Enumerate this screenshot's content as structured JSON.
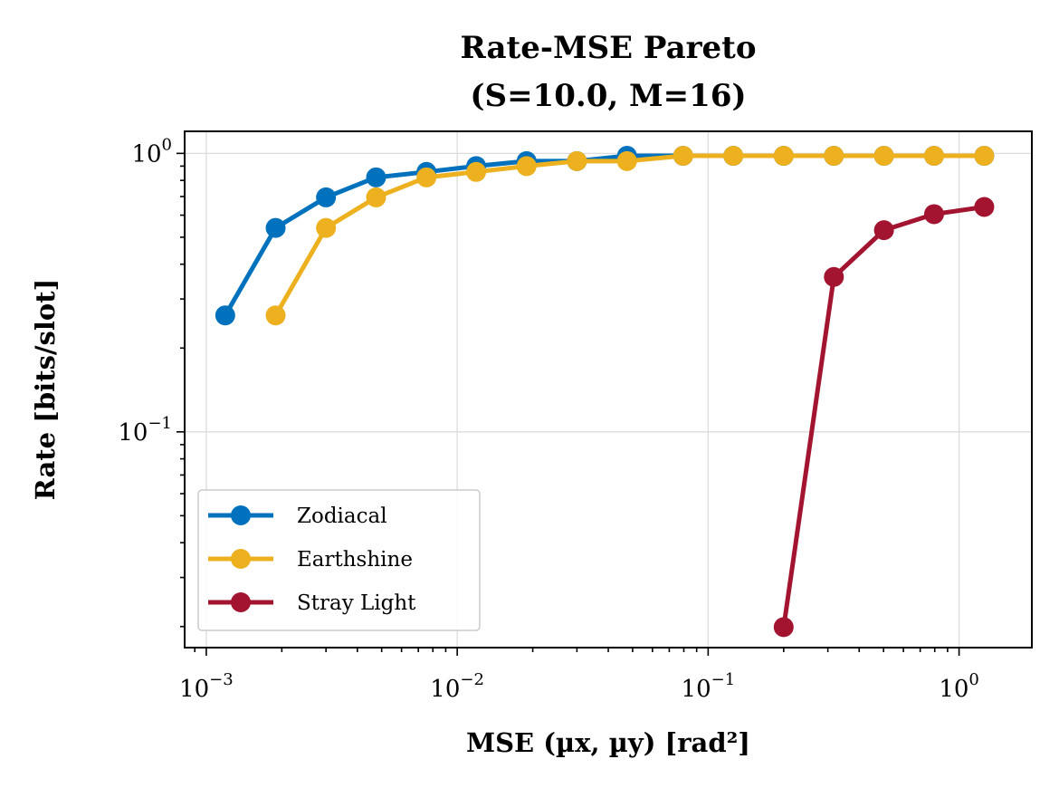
{
  "chart_data": {
    "type": "line",
    "title_line1": "Rate-MSE Pareto",
    "title_line2": "(S=10.0, M=16)",
    "xlabel": "MSE (µx, µy) [rad²]",
    "ylabel": "Rate [bits/slot]",
    "xscale": "log",
    "yscale": "log",
    "xlim": [
      0.00082,
      1.95
    ],
    "ylim": [
      0.0168,
      1.2
    ],
    "grid": true,
    "legend_position": "lower-left",
    "x_ticks": [
      {
        "value": 0.001,
        "base": "10",
        "exp": "−3"
      },
      {
        "value": 0.01,
        "base": "10",
        "exp": "−2"
      },
      {
        "value": 0.1,
        "base": "10",
        "exp": "−1"
      },
      {
        "value": 1,
        "base": "10",
        "exp": "0"
      }
    ],
    "y_ticks": [
      {
        "value": 0.1,
        "base": "10",
        "exp": "−1"
      },
      {
        "value": 1,
        "base": "10",
        "exp": "0"
      }
    ],
    "series": [
      {
        "name": "Zodiacal",
        "color": "#0072bd",
        "x": [
          0.00119,
          0.00189,
          0.003,
          0.00475,
          0.00754,
          0.0119,
          0.0189,
          0.03,
          0.0475,
          0.0795,
          0.126,
          0.2,
          0.317,
          0.502,
          0.795,
          1.26
        ],
        "y": [
          0.262,
          0.54,
          0.695,
          0.82,
          0.858,
          0.9,
          0.938,
          0.938,
          0.98,
          0.98,
          0.98,
          0.98,
          0.98,
          0.98,
          0.98,
          0.98
        ]
      },
      {
        "name": "Earthshine",
        "color": "#edb120",
        "x": [
          0.00189,
          0.003,
          0.00475,
          0.00754,
          0.0119,
          0.0189,
          0.03,
          0.0475,
          0.0795,
          0.126,
          0.2,
          0.317,
          0.502,
          0.795,
          1.26
        ],
        "y": [
          0.262,
          0.54,
          0.695,
          0.82,
          0.858,
          0.9,
          0.938,
          0.938,
          0.98,
          0.98,
          0.98,
          0.98,
          0.98,
          0.98,
          0.98
        ]
      },
      {
        "name": "Stray Light",
        "color": "#a2142f",
        "x": [
          0.2,
          0.317,
          0.502,
          0.795,
          1.26
        ],
        "y": [
          0.0199,
          0.36,
          0.53,
          0.605,
          0.642
        ]
      }
    ]
  }
}
